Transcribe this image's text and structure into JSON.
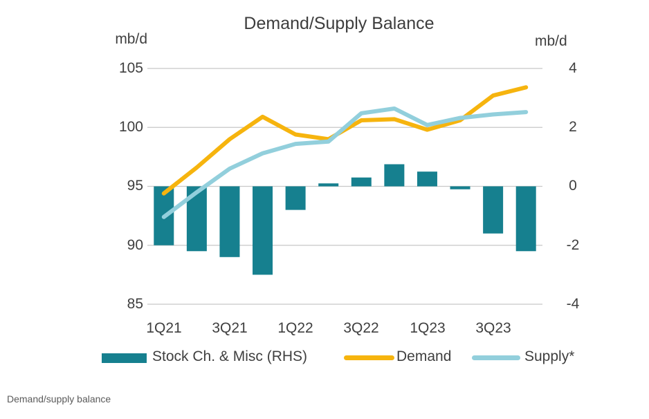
{
  "chart_data": {
    "type": "combo",
    "title": "Demand/Supply Balance",
    "caption": "Demand/supply balance",
    "grid": true,
    "grid_color": "#C7C7C7",
    "text_color": "#3F3F3F",
    "left_axis": {
      "unit": "mb/d",
      "min": 85,
      "max": 105,
      "ticks": [
        "105",
        "100",
        "95",
        "90",
        "85"
      ]
    },
    "right_axis": {
      "unit": "mb/d",
      "min": -4,
      "max": 4,
      "ticks": [
        "4",
        "2",
        "0",
        "-2",
        "-4"
      ]
    },
    "categories": [
      "1Q21",
      "2Q21",
      "3Q21",
      "4Q21",
      "1Q22",
      "2Q22",
      "3Q22",
      "4Q22",
      "1Q23",
      "2Q23",
      "3Q23",
      "4Q23"
    ],
    "x_tick_labels": [
      "1Q21",
      "3Q21",
      "1Q22",
      "3Q22",
      "1Q23",
      "3Q23"
    ],
    "legend_position": "bottom",
    "series": [
      {
        "name": "Stock Ch. & Misc (RHS)",
        "type": "bar",
        "axis": "right",
        "color": "#16808F",
        "values": [
          -2.0,
          -2.2,
          -2.4,
          -3.0,
          -0.8,
          0.1,
          0.3,
          0.75,
          0.5,
          -0.1,
          -1.6,
          -2.2
        ]
      },
      {
        "name": "Demand",
        "type": "line",
        "axis": "left",
        "color": "#F6B40E",
        "values": [
          94.4,
          96.6,
          99.0,
          100.9,
          99.4,
          99.0,
          100.6,
          100.7,
          99.8,
          100.6,
          102.7,
          103.4
        ]
      },
      {
        "name": "Supply*",
        "type": "line",
        "axis": "left",
        "color": "#92CFDC",
        "values": [
          92.4,
          94.5,
          96.5,
          97.8,
          98.6,
          98.8,
          101.2,
          101.6,
          100.2,
          100.8,
          101.1,
          101.3
        ]
      }
    ]
  },
  "caption": {
    "text": "Demand/supply balance"
  }
}
